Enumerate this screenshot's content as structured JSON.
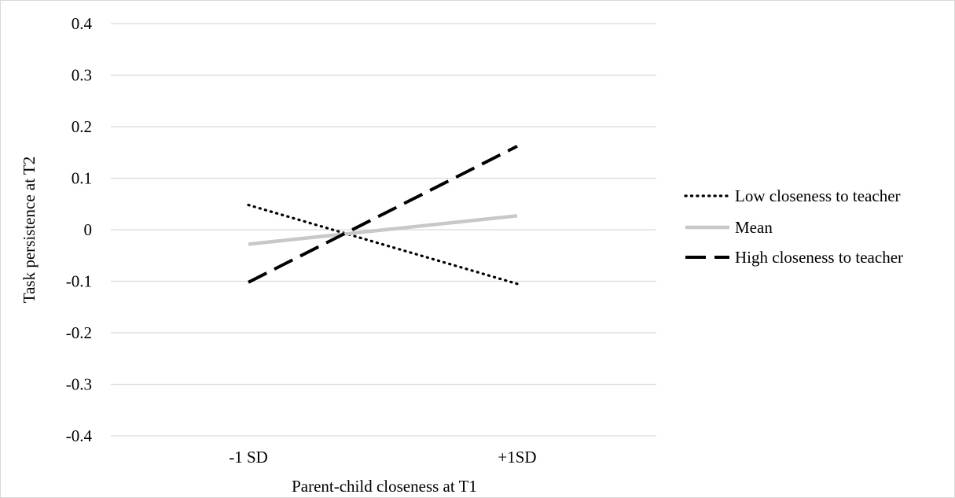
{
  "chart_data": {
    "type": "line",
    "title": "",
    "xlabel": "Parent-child closeness at T1",
    "ylabel": "Task persistence at T2",
    "categories": [
      "-1 SD",
      "+1SD"
    ],
    "ylim": [
      -0.4,
      0.4
    ],
    "yticks": [
      "0.4",
      "0.3",
      "0.2",
      "0.1",
      "0",
      "-0.1",
      "-0.2",
      "-0.3",
      "-0.4"
    ],
    "ytick_values": [
      0.4,
      0.3,
      0.2,
      0.1,
      0,
      -0.1,
      -0.2,
      -0.3,
      -0.4
    ],
    "grid": true,
    "legend_position": "right",
    "series": [
      {
        "name": "Low closeness to teacher",
        "values": [
          0.048,
          -0.105
        ],
        "style": "dotted",
        "color": "#000000"
      },
      {
        "name": "Mean",
        "values": [
          -0.028,
          0.027
        ],
        "style": "solid",
        "color": "#c8c8c8"
      },
      {
        "name": "High closeness to teacher",
        "values": [
          -0.102,
          0.162
        ],
        "style": "dashed",
        "color": "#000000"
      }
    ],
    "gridline_color": "#d9d9d9"
  }
}
